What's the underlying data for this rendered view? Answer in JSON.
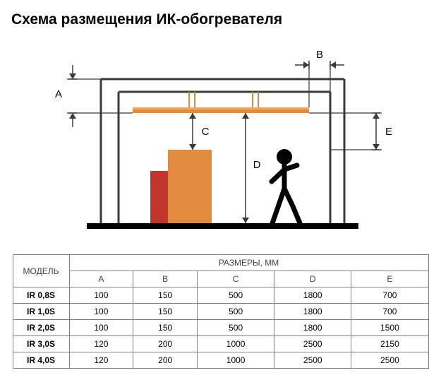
{
  "title": "Схема размещения ИК-обогревателя",
  "diagram": {
    "labels": {
      "A": "A",
      "B": "B",
      "C": "C",
      "D": "D",
      "E": "E"
    },
    "colors": {
      "stroke": "#3a3a3a",
      "floor": "#000000",
      "heater_bar": "#e08b3e",
      "heater_highlight": "#f5a85a",
      "box1": "#e08b3e",
      "box2": "#c0362c",
      "person": "#000000",
      "bg": "#ffffff"
    },
    "stroke_width": 3,
    "floor_height": 8,
    "font_size": 15,
    "label_font_weight": "normal"
  },
  "table": {
    "header_model": "МОДЕЛЬ",
    "header_dims": "РАЗМЕРЫ, ММ",
    "columns": [
      "A",
      "B",
      "C",
      "D",
      "E"
    ],
    "rows": [
      {
        "model": "IR 0,8S",
        "vals": [
          "100",
          "150",
          "500",
          "1800",
          "700"
        ]
      },
      {
        "model": "IR 1,0S",
        "vals": [
          "100",
          "150",
          "500",
          "1800",
          "700"
        ]
      },
      {
        "model": "IR 2,0S",
        "vals": [
          "100",
          "150",
          "500",
          "1800",
          "1500"
        ]
      },
      {
        "model": "IR 3,0S",
        "vals": [
          "120",
          "200",
          "1000",
          "2500",
          "2150"
        ]
      },
      {
        "model": "IR 4,0S",
        "vals": [
          "120",
          "200",
          "1000",
          "2500",
          "2500"
        ]
      }
    ]
  }
}
